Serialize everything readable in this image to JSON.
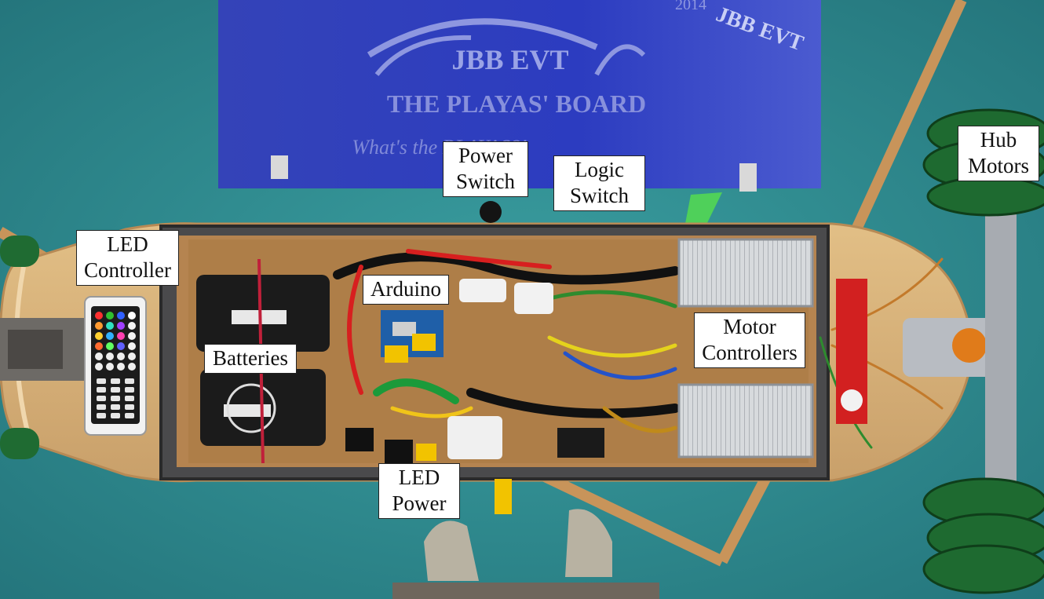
{
  "photo": {
    "sign": {
      "line1": "JBB EVT",
      "line2": "THE PLAYAS' BOARD",
      "line3": "What's the PLAYAS?!",
      "year": "2014",
      "badge": "JBB EVT"
    }
  },
  "labels": {
    "led_controller": [
      "LED",
      "Controller"
    ],
    "power_switch": [
      "Power",
      "Switch"
    ],
    "logic_switch": [
      "Logic",
      "Switch"
    ],
    "arduino": [
      "Arduino"
    ],
    "batteries": [
      "Batteries"
    ],
    "motor_controllers": [
      "Motor",
      "Controllers"
    ],
    "led_power": [
      "LED",
      "Power"
    ],
    "hub_motors": [
      "Hub",
      "Motors"
    ]
  },
  "colors": {
    "floor": "#2f8a8e",
    "sign": "#2f3fb8",
    "deck": "#d9b27a",
    "wheel": "#1f6b32",
    "controller_box": "#c9ccd0"
  }
}
